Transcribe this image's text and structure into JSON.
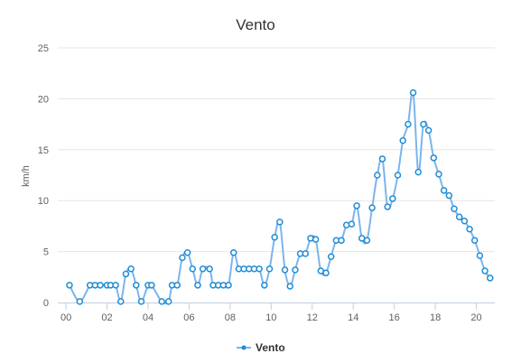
{
  "chart_data": {
    "type": "line",
    "title": "Vento",
    "ylabel": "km/h",
    "xlabel": "",
    "ylim": [
      0,
      25
    ],
    "y_ticks": [
      "0",
      "5",
      "10",
      "15",
      "20",
      "25"
    ],
    "xlim": [
      -0.4,
      20.9
    ],
    "x_ticks": [
      {
        "x": 0,
        "label": "00"
      },
      {
        "x": 2,
        "label": "02"
      },
      {
        "x": 4,
        "label": "04"
      },
      {
        "x": 6,
        "label": "06"
      },
      {
        "x": 8,
        "label": "08"
      },
      {
        "x": 10,
        "label": "10"
      },
      {
        "x": 12,
        "label": "12"
      },
      {
        "x": 14,
        "label": "14"
      },
      {
        "x": 16,
        "label": "16"
      },
      {
        "x": 18,
        "label": "18"
      },
      {
        "x": 20,
        "label": "20"
      }
    ],
    "grid": "horizontal",
    "legend_position": "bottom-center",
    "series": [
      {
        "name": "Vento",
        "color": "#7cb5ec",
        "marker_color": "#1f8dd6",
        "x": [
          0.17,
          0.67,
          1.17,
          1.42,
          1.67,
          2.0,
          2.17,
          2.42,
          2.67,
          2.92,
          3.17,
          3.42,
          3.67,
          4.0,
          4.17,
          4.67,
          5.0,
          5.17,
          5.42,
          5.67,
          5.92,
          6.17,
          6.42,
          6.67,
          7.0,
          7.17,
          7.42,
          7.67,
          7.92,
          8.17,
          8.42,
          8.67,
          8.92,
          9.17,
          9.42,
          9.67,
          9.92,
          10.17,
          10.42,
          10.67,
          10.92,
          11.17,
          11.42,
          11.67,
          11.92,
          12.17,
          12.42,
          12.67,
          12.92,
          13.17,
          13.42,
          13.67,
          13.92,
          14.17,
          14.42,
          14.67,
          14.92,
          15.17,
          15.42,
          15.67,
          15.92,
          16.17,
          16.42,
          16.67,
          16.92,
          17.17,
          17.42,
          17.67,
          17.92,
          18.17,
          18.42,
          18.67,
          18.92,
          19.17,
          19.42,
          19.67,
          19.92,
          20.17,
          20.42,
          20.67
        ],
        "y": [
          1.7,
          0.1,
          1.7,
          1.7,
          1.7,
          1.7,
          1.7,
          1.7,
          0.1,
          2.8,
          3.3,
          1.7,
          0.1,
          1.7,
          1.7,
          0.1,
          0.1,
          1.7,
          1.7,
          4.4,
          4.9,
          3.3,
          1.7,
          3.3,
          3.3,
          1.7,
          1.7,
          1.7,
          1.7,
          4.9,
          3.3,
          3.3,
          3.3,
          3.3,
          3.3,
          1.7,
          3.3,
          6.4,
          7.9,
          3.2,
          1.6,
          3.2,
          4.8,
          4.8,
          6.3,
          6.2,
          3.1,
          2.9,
          4.5,
          6.1,
          6.1,
          7.6,
          7.7,
          9.5,
          6.3,
          6.1,
          9.3,
          12.5,
          14.1,
          9.4,
          10.2,
          12.5,
          15.9,
          17.5,
          20.6,
          12.8,
          17.5,
          16.9,
          14.2,
          12.6,
          11.0,
          10.5,
          9.2,
          8.4,
          8.0,
          7.2,
          6.1,
          4.6,
          3.1,
          2.4
        ]
      }
    ]
  }
}
